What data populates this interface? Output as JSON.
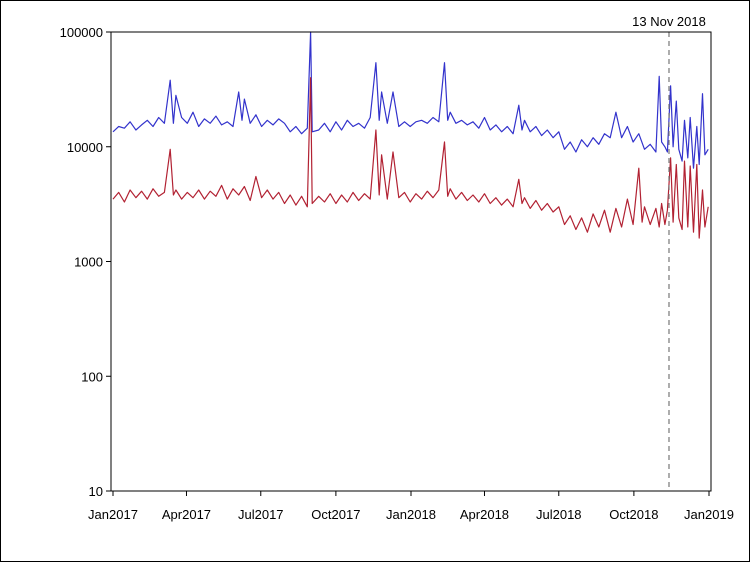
{
  "chart_data": {
    "type": "line",
    "title": "",
    "xlabel": "",
    "ylabel": "",
    "y_scale": "log",
    "ylim": [
      10,
      100000
    ],
    "xlim": [
      "2017-01-01",
      "2019-01-01"
    ],
    "grid": false,
    "legend": "none",
    "y_ticks": [
      {
        "value": 10,
        "label": "10"
      },
      {
        "value": 100,
        "label": "100"
      },
      {
        "value": 1000,
        "label": "1000"
      },
      {
        "value": 10000,
        "label": "10000"
      },
      {
        "value": 100000,
        "label": "100000"
      }
    ],
    "x_ticks": [
      {
        "value": "2017-01-01",
        "label": "Jan2017"
      },
      {
        "value": "2017-04-01",
        "label": "Apr2017"
      },
      {
        "value": "2017-07-01",
        "label": "Jul2017"
      },
      {
        "value": "2017-10-01",
        "label": "Oct2017"
      },
      {
        "value": "2018-01-01",
        "label": "Jan2018"
      },
      {
        "value": "2018-04-01",
        "label": "Apr2018"
      },
      {
        "value": "2018-07-01",
        "label": "Jul2018"
      },
      {
        "value": "2018-10-01",
        "label": "Oct2018"
      },
      {
        "value": "2019-01-01",
        "label": "Jan2019"
      }
    ],
    "annotations": [
      {
        "type": "vline",
        "x": "2018-11-13",
        "label": "13 Nov 2018",
        "style": "dashed",
        "color": "#777777"
      }
    ],
    "series": [
      {
        "color": "#3333cc",
        "points": [
          [
            "2017-01-01",
            13500
          ],
          [
            "2017-01-08",
            15000
          ],
          [
            "2017-01-15",
            14500
          ],
          [
            "2017-01-22",
            16500
          ],
          [
            "2017-01-29",
            14000
          ],
          [
            "2017-02-05",
            15500
          ],
          [
            "2017-02-12",
            17000
          ],
          [
            "2017-02-19",
            15000
          ],
          [
            "2017-02-26",
            18000
          ],
          [
            "2017-03-05",
            16000
          ],
          [
            "2017-03-12",
            38000
          ],
          [
            "2017-03-16",
            16000
          ],
          [
            "2017-03-19",
            28000
          ],
          [
            "2017-03-26",
            18000
          ],
          [
            "2017-04-02",
            16000
          ],
          [
            "2017-04-09",
            20000
          ],
          [
            "2017-04-16",
            15000
          ],
          [
            "2017-04-23",
            17500
          ],
          [
            "2017-04-30",
            16000
          ],
          [
            "2017-05-07",
            18500
          ],
          [
            "2017-05-14",
            15500
          ],
          [
            "2017-05-21",
            16500
          ],
          [
            "2017-05-28",
            15000
          ],
          [
            "2017-06-04",
            30000
          ],
          [
            "2017-06-08",
            17000
          ],
          [
            "2017-06-11",
            26000
          ],
          [
            "2017-06-18",
            16000
          ],
          [
            "2017-06-25",
            19000
          ],
          [
            "2017-07-02",
            15000
          ],
          [
            "2017-07-09",
            17000
          ],
          [
            "2017-07-16",
            15500
          ],
          [
            "2017-07-23",
            17500
          ],
          [
            "2017-07-30",
            16000
          ],
          [
            "2017-08-06",
            13500
          ],
          [
            "2017-08-13",
            15000
          ],
          [
            "2017-08-20",
            13000
          ],
          [
            "2017-08-27",
            14500
          ],
          [
            "2017-08-31",
            100000
          ],
          [
            "2017-09-02",
            13500
          ],
          [
            "2017-09-10",
            14000
          ],
          [
            "2017-09-17",
            16000
          ],
          [
            "2017-09-24",
            13500
          ],
          [
            "2017-10-01",
            16500
          ],
          [
            "2017-10-08",
            14000
          ],
          [
            "2017-10-15",
            17000
          ],
          [
            "2017-10-22",
            15000
          ],
          [
            "2017-10-29",
            16000
          ],
          [
            "2017-11-05",
            14500
          ],
          [
            "2017-11-12",
            18000
          ],
          [
            "2017-11-19",
            54000
          ],
          [
            "2017-11-23",
            17000
          ],
          [
            "2017-11-26",
            30000
          ],
          [
            "2017-12-03",
            16000
          ],
          [
            "2017-12-10",
            30000
          ],
          [
            "2017-12-17",
            15000
          ],
          [
            "2017-12-24",
            16500
          ],
          [
            "2017-12-31",
            15000
          ],
          [
            "2018-01-07",
            16500
          ],
          [
            "2018-01-14",
            17000
          ],
          [
            "2018-01-21",
            16000
          ],
          [
            "2018-01-28",
            18000
          ],
          [
            "2018-02-04",
            16500
          ],
          [
            "2018-02-11",
            54000
          ],
          [
            "2018-02-15",
            17000
          ],
          [
            "2018-02-18",
            20000
          ],
          [
            "2018-02-25",
            16000
          ],
          [
            "2018-03-04",
            17000
          ],
          [
            "2018-03-11",
            15500
          ],
          [
            "2018-03-18",
            16500
          ],
          [
            "2018-03-25",
            14500
          ],
          [
            "2018-04-01",
            18000
          ],
          [
            "2018-04-08",
            14000
          ],
          [
            "2018-04-15",
            15500
          ],
          [
            "2018-04-22",
            13500
          ],
          [
            "2018-04-29",
            15000
          ],
          [
            "2018-05-06",
            13000
          ],
          [
            "2018-05-13",
            23000
          ],
          [
            "2018-05-17",
            14000
          ],
          [
            "2018-05-20",
            17000
          ],
          [
            "2018-05-27",
            13500
          ],
          [
            "2018-06-03",
            15000
          ],
          [
            "2018-06-10",
            12500
          ],
          [
            "2018-06-17",
            14000
          ],
          [
            "2018-06-24",
            12000
          ],
          [
            "2018-07-01",
            13500
          ],
          [
            "2018-07-08",
            9500
          ],
          [
            "2018-07-15",
            11000
          ],
          [
            "2018-07-22",
            9000
          ],
          [
            "2018-07-29",
            11500
          ],
          [
            "2018-08-05",
            10000
          ],
          [
            "2018-08-12",
            12000
          ],
          [
            "2018-08-19",
            10500
          ],
          [
            "2018-08-26",
            13000
          ],
          [
            "2018-09-02",
            12000
          ],
          [
            "2018-09-09",
            20000
          ],
          [
            "2018-09-16",
            12000
          ],
          [
            "2018-09-23",
            15000
          ],
          [
            "2018-09-30",
            11000
          ],
          [
            "2018-10-07",
            13000
          ],
          [
            "2018-10-14",
            9500
          ],
          [
            "2018-10-21",
            10500
          ],
          [
            "2018-10-28",
            9000
          ],
          [
            "2018-11-01",
            41000
          ],
          [
            "2018-11-04",
            11000
          ],
          [
            "2018-11-08",
            10000
          ],
          [
            "2018-11-11",
            9000
          ],
          [
            "2018-11-15",
            34000
          ],
          [
            "2018-11-18",
            10000
          ],
          [
            "2018-11-22",
            25000
          ],
          [
            "2018-11-25",
            9500
          ],
          [
            "2018-11-29",
            7500
          ],
          [
            "2018-12-02",
            17000
          ],
          [
            "2018-12-06",
            8000
          ],
          [
            "2018-12-09",
            18000
          ],
          [
            "2018-12-13",
            6500
          ],
          [
            "2018-12-17",
            15000
          ],
          [
            "2018-12-20",
            7000
          ],
          [
            "2018-12-24",
            29000
          ],
          [
            "2018-12-27",
            8500
          ],
          [
            "2018-12-31",
            9500
          ]
        ]
      },
      {
        "color": "#b22233",
        "points": [
          [
            "2017-01-01",
            3500
          ],
          [
            "2017-01-08",
            4000
          ],
          [
            "2017-01-15",
            3300
          ],
          [
            "2017-01-22",
            4200
          ],
          [
            "2017-01-29",
            3600
          ],
          [
            "2017-02-05",
            4100
          ],
          [
            "2017-02-12",
            3500
          ],
          [
            "2017-02-19",
            4300
          ],
          [
            "2017-02-26",
            3700
          ],
          [
            "2017-03-05",
            4000
          ],
          [
            "2017-03-12",
            9500
          ],
          [
            "2017-03-16",
            3800
          ],
          [
            "2017-03-19",
            4200
          ],
          [
            "2017-03-26",
            3500
          ],
          [
            "2017-04-02",
            4000
          ],
          [
            "2017-04-09",
            3600
          ],
          [
            "2017-04-16",
            4200
          ],
          [
            "2017-04-23",
            3500
          ],
          [
            "2017-04-30",
            4100
          ],
          [
            "2017-05-07",
            3700
          ],
          [
            "2017-05-14",
            4600
          ],
          [
            "2017-05-21",
            3500
          ],
          [
            "2017-05-28",
            4300
          ],
          [
            "2017-06-04",
            3800
          ],
          [
            "2017-06-11",
            4500
          ],
          [
            "2017-06-18",
            3400
          ],
          [
            "2017-06-25",
            5500
          ],
          [
            "2017-07-02",
            3600
          ],
          [
            "2017-07-09",
            4200
          ],
          [
            "2017-07-16",
            3500
          ],
          [
            "2017-07-23",
            4000
          ],
          [
            "2017-07-30",
            3200
          ],
          [
            "2017-08-06",
            3800
          ],
          [
            "2017-08-13",
            3100
          ],
          [
            "2017-08-20",
            3700
          ],
          [
            "2017-08-27",
            3000
          ],
          [
            "2017-08-31",
            40000
          ],
          [
            "2017-09-02",
            3200
          ],
          [
            "2017-09-10",
            3700
          ],
          [
            "2017-09-17",
            3300
          ],
          [
            "2017-09-24",
            3900
          ],
          [
            "2017-10-01",
            3200
          ],
          [
            "2017-10-08",
            3800
          ],
          [
            "2017-10-15",
            3300
          ],
          [
            "2017-10-22",
            4000
          ],
          [
            "2017-10-29",
            3400
          ],
          [
            "2017-11-05",
            3900
          ],
          [
            "2017-11-12",
            3500
          ],
          [
            "2017-11-19",
            14000
          ],
          [
            "2017-11-23",
            3800
          ],
          [
            "2017-11-26",
            8500
          ],
          [
            "2017-12-03",
            3500
          ],
          [
            "2017-12-10",
            9000
          ],
          [
            "2017-12-17",
            3600
          ],
          [
            "2017-12-24",
            4000
          ],
          [
            "2017-12-31",
            3300
          ],
          [
            "2018-01-07",
            3900
          ],
          [
            "2018-01-14",
            3500
          ],
          [
            "2018-01-21",
            4100
          ],
          [
            "2018-01-28",
            3600
          ],
          [
            "2018-02-04",
            4200
          ],
          [
            "2018-02-11",
            11000
          ],
          [
            "2018-02-15",
            3700
          ],
          [
            "2018-02-18",
            4300
          ],
          [
            "2018-02-25",
            3500
          ],
          [
            "2018-03-04",
            4000
          ],
          [
            "2018-03-11",
            3400
          ],
          [
            "2018-03-18",
            3800
          ],
          [
            "2018-03-25",
            3300
          ],
          [
            "2018-04-01",
            3900
          ],
          [
            "2018-04-08",
            3200
          ],
          [
            "2018-04-15",
            3600
          ],
          [
            "2018-04-22",
            3100
          ],
          [
            "2018-04-29",
            3500
          ],
          [
            "2018-05-06",
            3000
          ],
          [
            "2018-05-13",
            5200
          ],
          [
            "2018-05-17",
            3200
          ],
          [
            "2018-05-20",
            3600
          ],
          [
            "2018-05-27",
            2900
          ],
          [
            "2018-06-03",
            3400
          ],
          [
            "2018-06-10",
            2800
          ],
          [
            "2018-06-17",
            3200
          ],
          [
            "2018-06-24",
            2700
          ],
          [
            "2018-07-01",
            3000
          ],
          [
            "2018-07-08",
            2100
          ],
          [
            "2018-07-15",
            2500
          ],
          [
            "2018-07-22",
            1900
          ],
          [
            "2018-07-29",
            2400
          ],
          [
            "2018-08-05",
            1800
          ],
          [
            "2018-08-12",
            2600
          ],
          [
            "2018-08-19",
            2000
          ],
          [
            "2018-08-26",
            2800
          ],
          [
            "2018-09-02",
            1800
          ],
          [
            "2018-09-09",
            2900
          ],
          [
            "2018-09-16",
            2000
          ],
          [
            "2018-09-23",
            3500
          ],
          [
            "2018-09-30",
            2100
          ],
          [
            "2018-10-07",
            6500
          ],
          [
            "2018-10-11",
            2200
          ],
          [
            "2018-10-14",
            3000
          ],
          [
            "2018-10-21",
            2100
          ],
          [
            "2018-10-28",
            2900
          ],
          [
            "2018-11-01",
            2000
          ],
          [
            "2018-11-04",
            3200
          ],
          [
            "2018-11-08",
            2100
          ],
          [
            "2018-11-11",
            2800
          ],
          [
            "2018-11-15",
            8000
          ],
          [
            "2018-11-18",
            2200
          ],
          [
            "2018-11-22",
            7000
          ],
          [
            "2018-11-25",
            2400
          ],
          [
            "2018-11-29",
            1900
          ],
          [
            "2018-12-02",
            7500
          ],
          [
            "2018-12-06",
            2000
          ],
          [
            "2018-12-09",
            6800
          ],
          [
            "2018-12-13",
            1800
          ],
          [
            "2018-12-17",
            7000
          ],
          [
            "2018-12-20",
            1600
          ],
          [
            "2018-12-24",
            4200
          ],
          [
            "2018-12-27",
            2000
          ],
          [
            "2018-12-31",
            3000
          ]
        ]
      }
    ]
  }
}
